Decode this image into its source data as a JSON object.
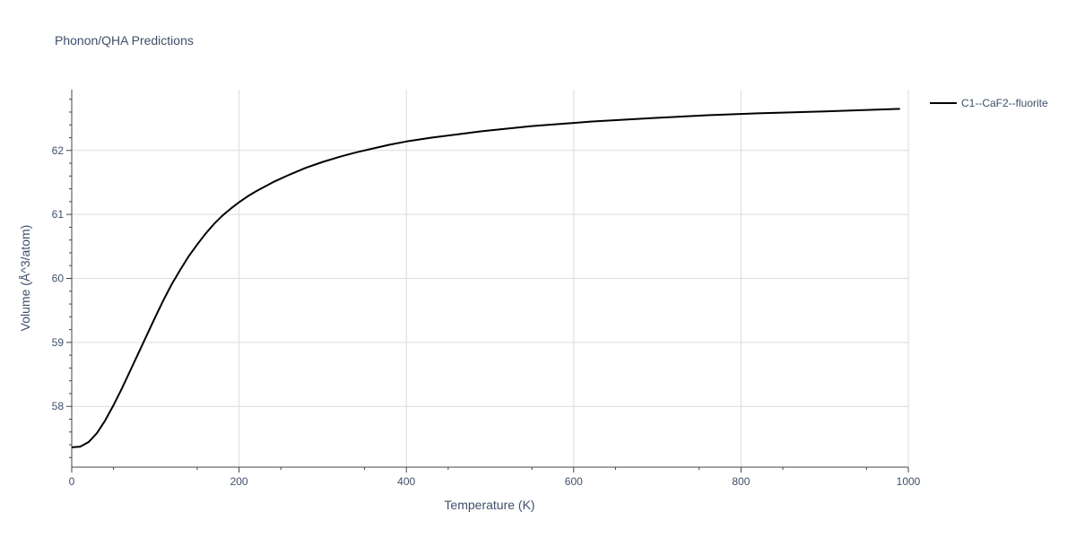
{
  "chart_data": {
    "type": "line",
    "title": "Phonon/QHA Predictions",
    "xlabel": "Temperature (K)",
    "ylabel": "Volume (Å^3/atom)",
    "xlim": [
      0,
      1000
    ],
    "ylim": [
      57.05,
      62.95
    ],
    "x_ticks": [
      0,
      200,
      400,
      600,
      800,
      1000
    ],
    "y_ticks": [
      58,
      59,
      60,
      61,
      62
    ],
    "grid": true,
    "legend_position": "top-right",
    "series": [
      {
        "name": "C1--CaF2--fluorite",
        "color": "#000000",
        "x": [
          0,
          10,
          20,
          30,
          40,
          50,
          60,
          70,
          80,
          90,
          100,
          110,
          120,
          130,
          140,
          150,
          160,
          170,
          180,
          190,
          200,
          210,
          220,
          240,
          260,
          280,
          300,
          320,
          340,
          360,
          380,
          400,
          430,
          460,
          490,
          520,
          550,
          580,
          620,
          660,
          700,
          760,
          820,
          900,
          990
        ],
        "y": [
          57.36,
          57.37,
          57.44,
          57.58,
          57.78,
          58.02,
          58.28,
          58.56,
          58.84,
          59.12,
          59.4,
          59.67,
          59.92,
          60.14,
          60.35,
          60.53,
          60.7,
          60.85,
          60.98,
          61.09,
          61.19,
          61.28,
          61.36,
          61.5,
          61.62,
          61.73,
          61.82,
          61.9,
          61.97,
          62.03,
          62.09,
          62.14,
          62.2,
          62.25,
          62.3,
          62.34,
          62.38,
          62.41,
          62.45,
          62.48,
          62.51,
          62.55,
          62.58,
          62.61,
          62.65
        ]
      }
    ]
  }
}
